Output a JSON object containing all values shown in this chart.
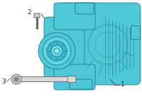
{
  "bg_color": "#ffffff",
  "alt_fill": "#4ec8d8",
  "alt_stroke": "#1a6878",
  "alt_stroke_lw": 0.5,
  "bolt_fill": "#d0d0d0",
  "bolt_stroke": "#555555",
  "rod_fill": "#d8d8d8",
  "rod_stroke": "#666666",
  "label_color": "#222222",
  "line_color": "#444444",
  "part1_label": "1",
  "part2_label": "2",
  "part3_label": "3",
  "figsize": [
    2.0,
    1.47
  ],
  "dpi": 100
}
